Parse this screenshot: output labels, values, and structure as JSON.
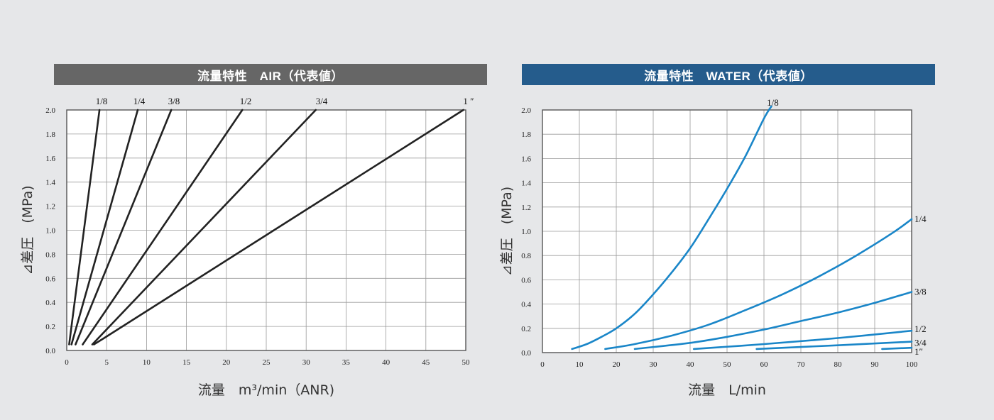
{
  "colors": {
    "air_banner": "#666666",
    "water_banner": "#255c8c",
    "air_line": "#222222",
    "water_line": "#1a86c8",
    "grid": "#9a9a9a"
  },
  "chart_data": [
    {
      "id": "air",
      "type": "line",
      "title": "流量特性　AIR（代表値）",
      "xlabel": "流量　m³/min（ANR)",
      "ylabel": "⊿差圧　(MPa)",
      "xlim": [
        0,
        50
      ],
      "ylim": [
        0,
        2.0
      ],
      "x_ticks": [
        "0",
        "5",
        "10",
        "15",
        "20",
        "25",
        "30",
        "35",
        "40",
        "45",
        "50"
      ],
      "y_ticks": [
        "0.0",
        "0.2",
        "0.4",
        "0.6",
        "0.8",
        "1.0",
        "1.2",
        "1.4",
        "1.6",
        "1.8",
        "2.0"
      ],
      "grid": true,
      "series": [
        {
          "name": "1/8",
          "points": [
            [
              0.3,
              0.05
            ],
            [
              4.1,
              2.0
            ]
          ]
        },
        {
          "name": "1/4",
          "points": [
            [
              0.6,
              0.05
            ],
            [
              8.9,
              2.0
            ]
          ]
        },
        {
          "name": "3/8",
          "points": [
            [
              1.1,
              0.05
            ],
            [
              13.1,
              2.0
            ]
          ]
        },
        {
          "name": "1/2",
          "points": [
            [
              2.0,
              0.05
            ],
            [
              22.0,
              2.0
            ]
          ]
        },
        {
          "name": "3/4",
          "points": [
            [
              3.2,
              0.05
            ],
            [
              31.2,
              2.0
            ]
          ]
        },
        {
          "name": "1 ″",
          "points": [
            [
              3.4,
              0.05
            ],
            [
              4.6,
              0.1
            ],
            [
              49.7,
              2.0
            ]
          ]
        }
      ]
    },
    {
      "id": "water",
      "type": "line",
      "title": "流量特性　WATER（代表値）",
      "xlabel": "流量　L/min",
      "ylabel": "⊿差圧　(MPa)",
      "xlim": [
        0,
        100
      ],
      "ylim": [
        0,
        2.0
      ],
      "x_ticks": [
        "0",
        "10",
        "20",
        "30",
        "40",
        "50",
        "60",
        "70",
        "80",
        "90",
        "100"
      ],
      "y_ticks": [
        "0.0",
        "0.2",
        "0.4",
        "0.6",
        "0.8",
        "1.0",
        "1.2",
        "1.4",
        "1.6",
        "1.8",
        "2.0"
      ],
      "grid": true,
      "series": [
        {
          "name": "1/8",
          "points": [
            [
              8,
              0.03
            ],
            [
              12,
              0.07
            ],
            [
              16,
              0.13
            ],
            [
              20,
              0.2
            ],
            [
              25,
              0.32
            ],
            [
              30,
              0.48
            ],
            [
              35,
              0.66
            ],
            [
              40,
              0.86
            ],
            [
              45,
              1.1
            ],
            [
              50,
              1.35
            ],
            [
              55,
              1.62
            ],
            [
              60,
              1.93
            ],
            [
              62,
              2.03
            ]
          ]
        },
        {
          "name": "1/4",
          "points": [
            [
              17,
              0.03
            ],
            [
              25,
              0.07
            ],
            [
              35,
              0.14
            ],
            [
              45,
              0.23
            ],
            [
              55,
              0.35
            ],
            [
              65,
              0.48
            ],
            [
              75,
              0.63
            ],
            [
              85,
              0.8
            ],
            [
              95,
              0.99
            ],
            [
              100,
              1.1
            ]
          ]
        },
        {
          "name": "3/8",
          "points": [
            [
              25,
              0.03
            ],
            [
              40,
              0.08
            ],
            [
              50,
              0.13
            ],
            [
              60,
              0.19
            ],
            [
              70,
              0.26
            ],
            [
              80,
              0.33
            ],
            [
              90,
              0.41
            ],
            [
              100,
              0.5
            ]
          ]
        },
        {
          "name": "1/2",
          "points": [
            [
              41,
              0.03
            ],
            [
              60,
              0.07
            ],
            [
              80,
              0.12
            ],
            [
              100,
              0.18
            ]
          ]
        },
        {
          "name": "3/4",
          "points": [
            [
              58,
              0.03
            ],
            [
              80,
              0.06
            ],
            [
              100,
              0.09
            ]
          ]
        },
        {
          "name": "1″",
          "points": [
            [
              92,
              0.03
            ],
            [
              100,
              0.04
            ]
          ]
        }
      ]
    }
  ]
}
